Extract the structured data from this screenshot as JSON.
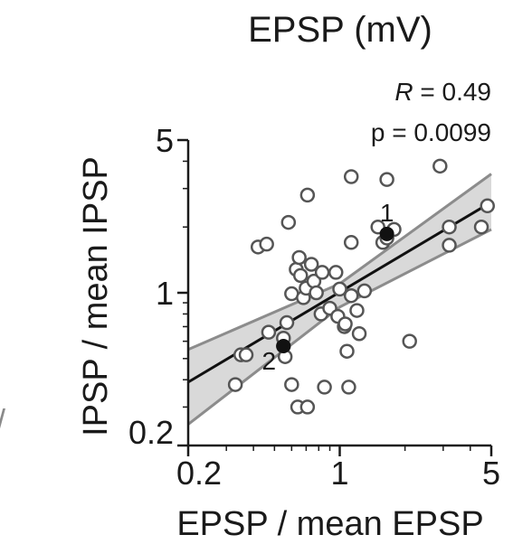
{
  "chart_data": {
    "type": "scatter",
    "title": "EPSP (mV)",
    "xlabel": "EPSP / mean EPSP",
    "ylabel": "IPSP / mean IPSP",
    "xscale": "log",
    "yscale": "log",
    "xlim": [
      0.2,
      5
    ],
    "ylim": [
      0.2,
      5
    ],
    "xticks": [
      {
        "value": 0.2,
        "label": "0.2"
      },
      {
        "value": 1,
        "label": "1"
      },
      {
        "value": 5,
        "label": "5"
      }
    ],
    "yticks": [
      {
        "value": 0.2,
        "label": "0.2"
      },
      {
        "value": 1,
        "label": "1"
      },
      {
        "value": 5,
        "label": "5"
      }
    ],
    "grid": false,
    "stats": {
      "r_symbol": "R",
      "r_text": " = 0.49",
      "p_text": "p = 0.0099"
    },
    "regression": {
      "line": [
        [
          0.2,
          0.39
        ],
        [
          5,
          2.6
        ]
      ],
      "ci_upper": [
        [
          0.2,
          0.55
        ],
        [
          1,
          1.1
        ],
        [
          5,
          3.5
        ]
      ],
      "ci_lower": [
        [
          0.2,
          0.25
        ],
        [
          1,
          0.86
        ],
        [
          5,
          1.95
        ]
      ]
    },
    "series": [
      {
        "marker": "open-circle",
        "points": [
          [
            0.33,
            0.38
          ],
          [
            0.35,
            0.52
          ],
          [
            0.37,
            0.52
          ],
          [
            0.42,
            1.62
          ],
          [
            0.46,
            1.67
          ],
          [
            0.47,
            0.66
          ],
          [
            0.55,
            0.57
          ],
          [
            0.55,
            0.62
          ],
          [
            0.56,
            0.51
          ],
          [
            0.57,
            0.73
          ],
          [
            0.58,
            2.1
          ],
          [
            0.6,
            0.99
          ],
          [
            0.6,
            0.38
          ],
          [
            0.63,
            1.28
          ],
          [
            0.65,
            1.45
          ],
          [
            0.64,
            0.3
          ],
          [
            0.66,
            1.2
          ],
          [
            0.68,
            0.95
          ],
          [
            0.7,
            1.05
          ],
          [
            0.71,
            2.8
          ],
          [
            0.71,
            0.3
          ],
          [
            0.74,
            1.35
          ],
          [
            0.76,
            1.13
          ],
          [
            0.78,
            1.0
          ],
          [
            0.82,
            0.8
          ],
          [
            0.83,
            1.24
          ],
          [
            0.9,
            0.85
          ],
          [
            0.85,
            0.37
          ],
          [
            0.96,
            1.24
          ],
          [
            1.0,
            1.04
          ],
          [
            0.98,
            0.78
          ],
          [
            1.05,
            0.7
          ],
          [
            1.06,
            0.72
          ],
          [
            1.08,
            0.54
          ],
          [
            1.1,
            0.37
          ],
          [
            1.13,
            0.97
          ],
          [
            1.13,
            1.7
          ],
          [
            1.13,
            3.4
          ],
          [
            1.2,
            0.83
          ],
          [
            1.23,
            0.65
          ],
          [
            1.3,
            1.02
          ],
          [
            1.5,
            2.0
          ],
          [
            1.58,
            1.7
          ],
          [
            1.65,
            1.78
          ],
          [
            1.65,
            3.3
          ],
          [
            1.78,
            1.95
          ],
          [
            2.1,
            0.6
          ],
          [
            2.9,
            3.8
          ],
          [
            3.2,
            2.0
          ],
          [
            3.2,
            1.65
          ],
          [
            4.5,
            2.0
          ],
          [
            4.8,
            2.5
          ]
        ]
      },
      {
        "marker": "filled-circle",
        "points": [
          [
            1.65,
            1.86,
            "1"
          ],
          [
            0.55,
            0.57,
            "2"
          ]
        ]
      }
    ],
    "edge_fragment": "/"
  }
}
